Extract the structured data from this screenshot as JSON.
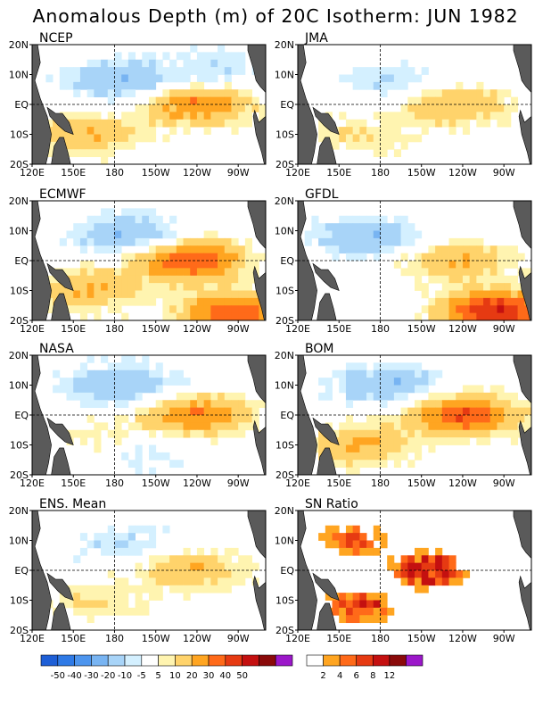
{
  "title": "Anomalous Depth (m) of 20C Isotherm: JUN 1982",
  "colors": {
    "land": "#5a5a5a",
    "depth_scale": [
      "#1e5fd6",
      "#2f7ae6",
      "#4d95ee",
      "#78b4f2",
      "#a8d4f8",
      "#d4f0ff",
      "#ffffff",
      "#fff4b0",
      "#ffd36b",
      "#ffa521",
      "#ff6a19",
      "#e63a12",
      "#c41010",
      "#8a0a0a",
      "#9b17c9"
    ],
    "sn_scale": [
      "#ffffff",
      "#ffa521",
      "#ff6a19",
      "#e63a12",
      "#c41010",
      "#8a0a0a",
      "#9b17c9"
    ]
  },
  "chart_data": [
    {
      "type": "heatmap",
      "title": "NCEP",
      "x_ticks": [
        "120E",
        "150E",
        "180",
        "150W",
        "120W",
        "90W"
      ],
      "y_ticks": [
        "20N",
        "10N",
        "EQ",
        "10S",
        "20S"
      ],
      "xlim": [
        120,
        290
      ],
      "ylim": [
        -20,
        20
      ],
      "features": [
        {
          "lon": 240,
          "lat": 0,
          "value": 30
        },
        {
          "lon": 160,
          "lat": -10,
          "value": 20
        },
        {
          "lon": 185,
          "lat": 8,
          "value": -20
        },
        {
          "lon": 260,
          "lat": 12,
          "value": -10
        }
      ]
    },
    {
      "type": "heatmap",
      "title": "JMA",
      "x_ticks": [
        "120E",
        "150E",
        "180",
        "150W",
        "120W",
        "90W"
      ],
      "y_ticks": [
        "20N",
        "10N",
        "EQ",
        "10S",
        "20S"
      ],
      "xlim": [
        120,
        290
      ],
      "ylim": [
        -20,
        20
      ],
      "features": [
        {
          "lon": 235,
          "lat": 0,
          "value": 20
        },
        {
          "lon": 165,
          "lat": -10,
          "value": 10
        },
        {
          "lon": 190,
          "lat": 8,
          "value": -10
        }
      ]
    },
    {
      "type": "heatmap",
      "title": "ECMWF",
      "x_ticks": [
        "120E",
        "150E",
        "180",
        "150W",
        "120W",
        "90W"
      ],
      "y_ticks": [
        "20N",
        "10N",
        "EQ",
        "10S",
        "20S"
      ],
      "xlim": [
        120,
        290
      ],
      "ylim": [
        -20,
        20
      ],
      "features": [
        {
          "lon": 235,
          "lat": 0,
          "value": 40
        },
        {
          "lon": 160,
          "lat": -10,
          "value": 20
        },
        {
          "lon": 190,
          "lat": 9,
          "value": -20
        },
        {
          "lon": 268,
          "lat": -18,
          "value": 40
        }
      ]
    },
    {
      "type": "heatmap",
      "title": "GFDL",
      "x_ticks": [
        "120E",
        "150E",
        "180",
        "150W",
        "120W",
        "90W"
      ],
      "y_ticks": [
        "20N",
        "10N",
        "EQ",
        "10S",
        "20S"
      ],
      "xlim": [
        120,
        290
      ],
      "ylim": [
        -20,
        20
      ],
      "features": [
        {
          "lon": 235,
          "lat": 0,
          "value": 20
        },
        {
          "lon": 170,
          "lat": 8,
          "value": -20
        },
        {
          "lon": 265,
          "lat": -17,
          "value": 50
        }
      ]
    },
    {
      "type": "heatmap",
      "title": "NASA",
      "x_ticks": [
        "120E",
        "150E",
        "180",
        "150W",
        "120W",
        "90W"
      ],
      "y_ticks": [
        "20N",
        "10N",
        "EQ",
        "10S",
        "20S"
      ],
      "xlim": [
        120,
        290
      ],
      "ylim": [
        -20,
        20
      ],
      "features": [
        {
          "lon": 240,
          "lat": 0,
          "value": 30
        },
        {
          "lon": 170,
          "lat": -8,
          "value": 10
        },
        {
          "lon": 185,
          "lat": 10,
          "value": -20
        },
        {
          "lon": 200,
          "lat": -12,
          "value": -10
        }
      ]
    },
    {
      "type": "heatmap",
      "title": "BOM",
      "x_ticks": [
        "120E",
        "150E",
        "180",
        "150W",
        "120W",
        "90W"
      ],
      "y_ticks": [
        "20N",
        "10N",
        "EQ",
        "10S",
        "20S"
      ],
      "xlim": [
        120,
        290
      ],
      "ylim": [
        -20,
        20
      ],
      "features": [
        {
          "lon": 240,
          "lat": 0,
          "value": 40
        },
        {
          "lon": 165,
          "lat": -10,
          "value": 20
        },
        {
          "lon": 185,
          "lat": 10,
          "value": -20
        }
      ]
    },
    {
      "type": "heatmap",
      "title": "ENS. Mean",
      "x_ticks": [
        "120E",
        "150E",
        "180",
        "150W",
        "120W",
        "90W"
      ],
      "y_ticks": [
        "20N",
        "10N",
        "EQ",
        "10S",
        "20S"
      ],
      "xlim": [
        120,
        290
      ],
      "ylim": [
        -20,
        20
      ],
      "features": [
        {
          "lon": 235,
          "lat": 0,
          "value": 20
        },
        {
          "lon": 165,
          "lat": -10,
          "value": 10
        },
        {
          "lon": 185,
          "lat": 9,
          "value": -10
        }
      ]
    },
    {
      "type": "heatmap",
      "title": "SN Ratio",
      "x_ticks": [
        "120E",
        "150E",
        "180",
        "150W",
        "120W",
        "90W"
      ],
      "y_ticks": [
        "20N",
        "10N",
        "EQ",
        "10S",
        "20S"
      ],
      "xlim": [
        120,
        290
      ],
      "ylim": [
        -20,
        20
      ],
      "features": [
        {
          "lon": 215,
          "lat": 0,
          "value": 12
        },
        {
          "lon": 160,
          "lat": 10,
          "value": 6
        },
        {
          "lon": 165,
          "lat": -12,
          "value": 8
        }
      ]
    }
  ],
  "colorbars": [
    {
      "labels": [
        "-50",
        "-40",
        "-30",
        "-20",
        "-10",
        "-5",
        "5",
        "10",
        "20",
        "30",
        "40",
        "50"
      ]
    },
    {
      "labels": [
        "2",
        "4",
        "6",
        "8",
        "12"
      ]
    }
  ]
}
